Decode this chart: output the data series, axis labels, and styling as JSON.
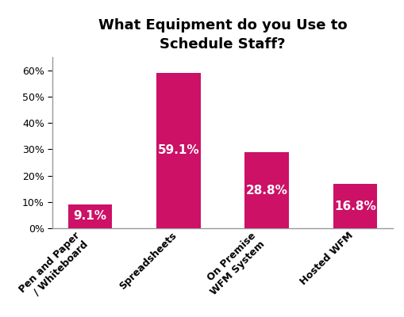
{
  "categories": [
    "Pen and Paper\n/ Whiteboard",
    "Spreadsheets",
    "On Premise\nWFM System",
    "Hosted WFM"
  ],
  "values": [
    9.1,
    59.1,
    28.8,
    16.8
  ],
  "labels": [
    "9.1%",
    "59.1%",
    "28.8%",
    "16.8%"
  ],
  "bar_color": "#CC1167",
  "title": "What Equipment do you Use to\nSchedule Staff?",
  "title_fontsize": 13,
  "title_fontweight": "bold",
  "ylim": [
    0,
    65
  ],
  "yticks": [
    0,
    10,
    20,
    30,
    40,
    50,
    60
  ],
  "label_color": "#ffffff",
  "label_fontsize": 11,
  "label_fontweight": "bold",
  "xtick_fontsize": 9,
  "ytick_fontsize": 9,
  "xtick_color": "#000000",
  "ytick_color": "#000000",
  "background_color": "#ffffff",
  "spine_color": "#999999",
  "bar_width": 0.5
}
